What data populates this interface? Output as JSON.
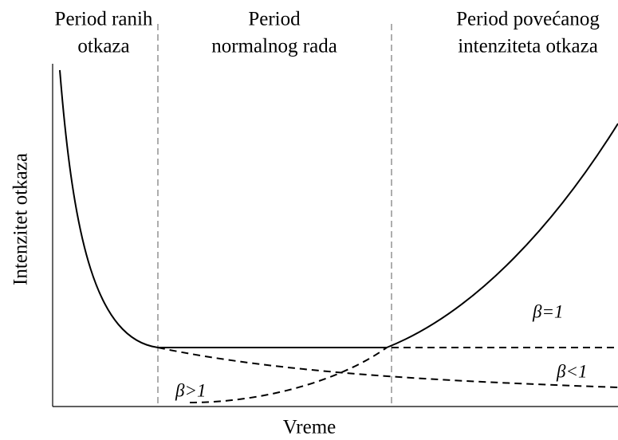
{
  "headings": [
    {
      "lines": [
        "Period ranih",
        "otkaza"
      ]
    },
    {
      "lines": [
        "Period",
        "normalnog rada"
      ]
    },
    {
      "lines": [
        "Period povećanog",
        "intenziteta otkaza"
      ]
    }
  ],
  "y_axis_label": "Intenzitet otkaza",
  "x_axis_label": "Vreme",
  "curve_labels": [
    "β=1",
    "β<1",
    "β>1"
  ]
}
